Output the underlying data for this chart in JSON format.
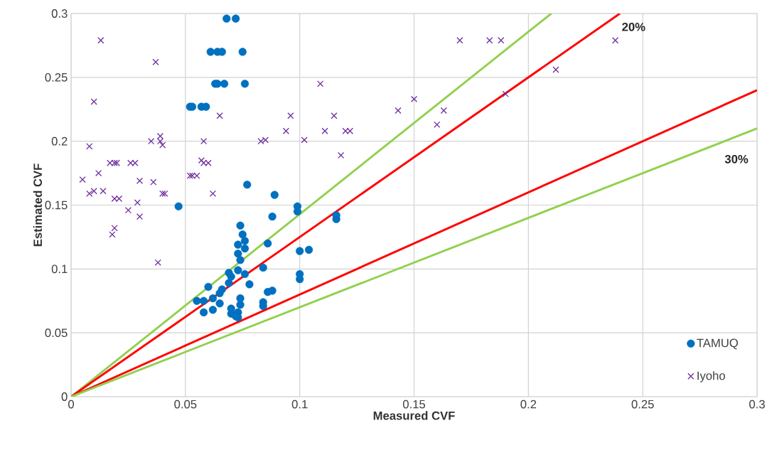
{
  "chart_data": {
    "type": "scatter",
    "xlabel": "Measured CVF",
    "ylabel": "Estimated CVF",
    "xlim": [
      0,
      0.3
    ],
    "ylim": [
      0,
      0.3
    ],
    "xticks": [
      0,
      0.05,
      0.1,
      0.15,
      0.2,
      0.25,
      0.3
    ],
    "yticks": [
      0,
      0.05,
      0.1,
      0.15,
      0.2,
      0.25,
      0.3
    ],
    "grid": true,
    "legend": "bottom right",
    "annotations": [
      "20%",
      "30%"
    ],
    "series": [
      {
        "type": "line",
        "color": "#92d050",
        "marker": "none",
        "x": [
          0,
          0.21
        ],
        "values": [
          0,
          0.3
        ]
      },
      {
        "type": "line",
        "color": "#ff0000",
        "marker": "none",
        "x": [
          0,
          0.24
        ],
        "values": [
          0,
          0.3
        ]
      },
      {
        "type": "line",
        "color": "#ff0000",
        "marker": "none",
        "x": [
          0,
          0.3
        ],
        "values": [
          0,
          0.24
        ]
      },
      {
        "type": "line",
        "color": "#92d050",
        "marker": "none",
        "x": [
          0,
          0.3
        ],
        "values": [
          0,
          0.21
        ]
      },
      {
        "name": "TAMUQ",
        "color": "#0070c0",
        "marker": "circle",
        "x": [
          0.068,
          0.072,
          0.061,
          0.064,
          0.066,
          0.075,
          0.063,
          0.064,
          0.067,
          0.076,
          0.052,
          0.053,
          0.057,
          0.059,
          0.077,
          0.047,
          0.089,
          0.099,
          0.099,
          0.116,
          0.116,
          0.088,
          0.074,
          0.075,
          0.076,
          0.076,
          0.073,
          0.073,
          0.074,
          0.086,
          0.1,
          0.104,
          0.084,
          0.069,
          0.073,
          0.076,
          0.07,
          0.078,
          0.069,
          0.1,
          0.1,
          0.06,
          0.066,
          0.065,
          0.088,
          0.086,
          0.055,
          0.058,
          0.062,
          0.065,
          0.074,
          0.074,
          0.084,
          0.084,
          0.058,
          0.062,
          0.07,
          0.07,
          0.073,
          0.073,
          0.072
        ],
        "values": [
          0.296,
          0.296,
          0.27,
          0.27,
          0.27,
          0.27,
          0.245,
          0.245,
          0.245,
          0.245,
          0.227,
          0.227,
          0.227,
          0.227,
          0.166,
          0.149,
          0.158,
          0.149,
          0.145,
          0.142,
          0.139,
          0.141,
          0.134,
          0.127,
          0.122,
          0.116,
          0.119,
          0.112,
          0.107,
          0.12,
          0.114,
          0.115,
          0.101,
          0.097,
          0.099,
          0.096,
          0.094,
          0.088,
          0.089,
          0.096,
          0.092,
          0.086,
          0.084,
          0.081,
          0.083,
          0.082,
          0.075,
          0.075,
          0.077,
          0.073,
          0.077,
          0.072,
          0.074,
          0.071,
          0.066,
          0.068,
          0.069,
          0.065,
          0.066,
          0.062,
          0.063
        ]
      },
      {
        "name": "Iyoho",
        "color": "#7030a0",
        "marker": "cross",
        "x": [
          0.013,
          0.037,
          0.01,
          0.008,
          0.005,
          0.012,
          0.008,
          0.01,
          0.014,
          0.017,
          0.019,
          0.02,
          0.026,
          0.028,
          0.03,
          0.035,
          0.039,
          0.039,
          0.04,
          0.019,
          0.021,
          0.025,
          0.029,
          0.03,
          0.036,
          0.04,
          0.041,
          0.018,
          0.019,
          0.038,
          0.065,
          0.058,
          0.052,
          0.053,
          0.055,
          0.057,
          0.058,
          0.06,
          0.062,
          0.083,
          0.085,
          0.094,
          0.096,
          0.102,
          0.109,
          0.111,
          0.115,
          0.118,
          0.12,
          0.122,
          0.143,
          0.15,
          0.16,
          0.163,
          0.17,
          0.183,
          0.188,
          0.19,
          0.212,
          0.238
        ],
        "values": [
          0.279,
          0.262,
          0.231,
          0.196,
          0.17,
          0.175,
          0.159,
          0.161,
          0.161,
          0.183,
          0.183,
          0.183,
          0.183,
          0.183,
          0.169,
          0.2,
          0.204,
          0.2,
          0.197,
          0.155,
          0.155,
          0.146,
          0.152,
          0.141,
          0.168,
          0.159,
          0.159,
          0.127,
          0.132,
          0.105,
          0.22,
          0.2,
          0.173,
          0.173,
          0.173,
          0.185,
          0.183,
          0.183,
          0.159,
          0.2,
          0.201,
          0.208,
          0.22,
          0.201,
          0.245,
          0.208,
          0.22,
          0.189,
          0.208,
          0.208,
          0.224,
          0.233,
          0.213,
          0.224,
          0.279,
          0.279,
          0.279,
          0.237,
          0.256,
          0.279
        ]
      }
    ]
  }
}
